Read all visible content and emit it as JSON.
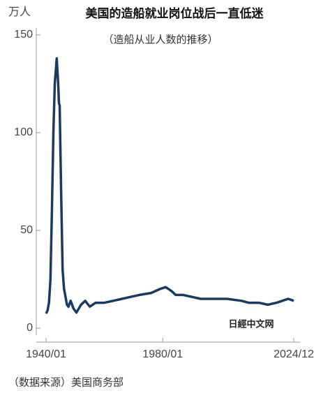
{
  "chart_data": {
    "type": "line",
    "title": "美国的造船就业岗位战后一直低迷",
    "subtitle": "（造船从业人数的推移）",
    "y_label": "万人",
    "source": "（数据来源）美国商务部",
    "logo": "日經中文网",
    "x": [
      "1940/01",
      "1940/07",
      "1941/01",
      "1941/07",
      "1942/01",
      "1942/07",
      "1943/01",
      "1943/09",
      "1944/03",
      "1944/06",
      "1944/09",
      "1945/03",
      "1945/09",
      "1946/03",
      "1946/09",
      "1947/03",
      "1947/09",
      "1948/06",
      "1949/06",
      "1950/06",
      "1952/01",
      "1953/06",
      "1955/01",
      "1957/01",
      "1960/01",
      "1963/01",
      "1966/01",
      "1969/01",
      "1972/01",
      "1976/01",
      "1979/01",
      "1981/01",
      "1983/01",
      "1984/06",
      "1987/01",
      "1990/01",
      "1993/01",
      "1997/01",
      "2002/01",
      "2007/01",
      "2009/06",
      "2013/01",
      "2016/01",
      "2019/01",
      "2021/01",
      "2023/01",
      "2024/12"
    ],
    "series": [
      {
        "name": "造船从业人数",
        "color": "#1c3a5e",
        "values": [
          7.5,
          9,
          13,
          25,
          60,
          100,
          125,
          138,
          125,
          115,
          114,
          70,
          30,
          20,
          16,
          12,
          11,
          14,
          10,
          8,
          12,
          14,
          11,
          13,
          13,
          14,
          15,
          16,
          17,
          18,
          20,
          21,
          19,
          17,
          17,
          16,
          15,
          15,
          15,
          14,
          13,
          13,
          12,
          13,
          14,
          15,
          14
        ]
      }
    ],
    "xlim": [
      "1940/01",
      "2024/12"
    ],
    "xticks": [
      "1940/01",
      "1980/01",
      "2024/12"
    ],
    "ylim": [
      0,
      150
    ],
    "yticks": [
      0,
      50,
      100,
      150
    ]
  }
}
